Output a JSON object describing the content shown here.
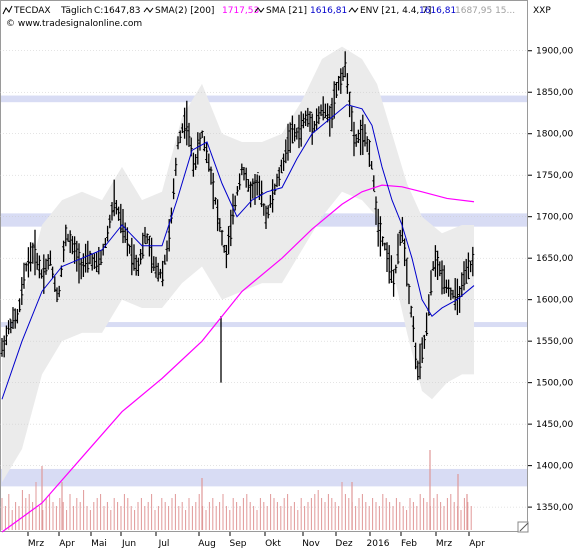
{
  "header": {
    "symbol": "TECDAX",
    "interval": "Täglich",
    "close": "C:1647,83",
    "ind1_name": "SMA(2) [200]",
    "ind1_val": "1717,53",
    "ind2_name": "SMA [21]",
    "ind2_val": "1616,81",
    "ind3_name": "ENV [21, 4.4, 7]",
    "ind3_val": "1616,81",
    "ind3_val2": "1687,95  15...",
    "scale_label": "XXP",
    "copyright": "© www.tradesignalonline.com"
  },
  "colors": {
    "price": "#000000",
    "sma200": "#ff00ff",
    "sma21": "#0000cc",
    "envelope": "#ebebeb",
    "zones": "#d8dcf4",
    "volume": "#e09898",
    "grid": "#c8c8c8"
  },
  "chart_data": {
    "type": "candlestick",
    "x_ticks": [
      "Mrz",
      "Apr",
      "Mai",
      "Jun",
      "Jul",
      "Aug",
      "Sep",
      "Okt",
      "Nov",
      "Dez",
      "2016",
      "Feb",
      "Mrz",
      "Apr"
    ],
    "y_ticks": [
      "1900,00",
      "1850,00",
      "1800,00",
      "1750,00",
      "1700,00",
      "1650,00",
      "1600,00",
      "1550,00",
      "1500,00",
      "1450,00",
      "1400,00",
      "1350,00"
    ],
    "ylim": [
      1320,
      1925
    ],
    "price_path": [
      [
        0,
        1540
      ],
      [
        8,
        1570
      ],
      [
        16,
        1580
      ],
      [
        24,
        1640
      ],
      [
        32,
        1660
      ],
      [
        40,
        1630
      ],
      [
        48,
        1650
      ],
      [
        56,
        1600
      ],
      [
        64,
        1680
      ],
      [
        72,
        1660
      ],
      [
        80,
        1640
      ],
      [
        88,
        1650
      ],
      [
        96,
        1640
      ],
      [
        104,
        1670
      ],
      [
        112,
        1720
      ],
      [
        120,
        1690
      ],
      [
        128,
        1660
      ],
      [
        136,
        1640
      ],
      [
        144,
        1680
      ],
      [
        152,
        1640
      ],
      [
        160,
        1630
      ],
      [
        168,
        1680
      ],
      [
        176,
        1790
      ],
      [
        184,
        1820
      ],
      [
        192,
        1760
      ],
      [
        200,
        1800
      ],
      [
        208,
        1760
      ],
      [
        216,
        1700
      ],
      [
        224,
        1650
      ],
      [
        232,
        1710
      ],
      [
        240,
        1760
      ],
      [
        248,
        1730
      ],
      [
        256,
        1740
      ],
      [
        264,
        1700
      ],
      [
        272,
        1730
      ],
      [
        280,
        1760
      ],
      [
        288,
        1800
      ],
      [
        296,
        1800
      ],
      [
        304,
        1820
      ],
      [
        312,
        1810
      ],
      [
        320,
        1830
      ],
      [
        328,
        1820
      ],
      [
        336,
        1860
      ],
      [
        344,
        1880
      ],
      [
        352,
        1790
      ],
      [
        360,
        1800
      ],
      [
        368,
        1780
      ],
      [
        376,
        1690
      ],
      [
        384,
        1660
      ],
      [
        392,
        1620
      ],
      [
        400,
        1690
      ],
      [
        408,
        1600
      ],
      [
        416,
        1510
      ],
      [
        424,
        1560
      ],
      [
        432,
        1650
      ],
      [
        440,
        1630
      ],
      [
        448,
        1610
      ],
      [
        456,
        1600
      ],
      [
        464,
        1630
      ],
      [
        472,
        1648
      ]
    ],
    "sma21_path": [
      [
        0,
        1480
      ],
      [
        20,
        1550
      ],
      [
        40,
        1610
      ],
      [
        60,
        1640
      ],
      [
        80,
        1650
      ],
      [
        100,
        1660
      ],
      [
        120,
        1690
      ],
      [
        140,
        1665
      ],
      [
        160,
        1665
      ],
      [
        175,
        1720
      ],
      [
        190,
        1780
      ],
      [
        205,
        1790
      ],
      [
        220,
        1740
      ],
      [
        235,
        1700
      ],
      [
        250,
        1720
      ],
      [
        265,
        1730
      ],
      [
        280,
        1735
      ],
      [
        295,
        1770
      ],
      [
        310,
        1800
      ],
      [
        325,
        1815
      ],
      [
        345,
        1835
      ],
      [
        360,
        1830
      ],
      [
        370,
        1810
      ],
      [
        380,
        1760
      ],
      [
        390,
        1720
      ],
      [
        400,
        1690
      ],
      [
        410,
        1650
      ],
      [
        420,
        1600
      ],
      [
        430,
        1580
      ],
      [
        440,
        1590
      ],
      [
        455,
        1600
      ],
      [
        472,
        1617
      ]
    ],
    "sma200_path": [
      [
        0,
        1320
      ],
      [
        40,
        1355
      ],
      [
        80,
        1410
      ],
      [
        120,
        1465
      ],
      [
        160,
        1505
      ],
      [
        200,
        1550
      ],
      [
        240,
        1610
      ],
      [
        280,
        1650
      ],
      [
        310,
        1685
      ],
      [
        340,
        1715
      ],
      [
        360,
        1730
      ],
      [
        380,
        1738
      ],
      [
        400,
        1736
      ],
      [
        420,
        1730
      ],
      [
        445,
        1722
      ],
      [
        472,
        1718
      ]
    ],
    "envelope_upper": [
      [
        0,
        1530
      ],
      [
        20,
        1600
      ],
      [
        40,
        1690
      ],
      [
        60,
        1720
      ],
      [
        80,
        1730
      ],
      [
        100,
        1720
      ],
      [
        120,
        1760
      ],
      [
        140,
        1720
      ],
      [
        160,
        1730
      ],
      [
        180,
        1820
      ],
      [
        200,
        1860
      ],
      [
        220,
        1800
      ],
      [
        240,
        1790
      ],
      [
        260,
        1790
      ],
      [
        280,
        1800
      ],
      [
        300,
        1840
      ],
      [
        320,
        1890
      ],
      [
        340,
        1905
      ],
      [
        360,
        1890
      ],
      [
        375,
        1860
      ],
      [
        390,
        1800
      ],
      [
        405,
        1740
      ],
      [
        420,
        1700
      ],
      [
        440,
        1680
      ],
      [
        460,
        1690
      ],
      [
        472,
        1690
      ]
    ],
    "envelope_lower": [
      [
        0,
        1380
      ],
      [
        20,
        1420
      ],
      [
        40,
        1510
      ],
      [
        60,
        1550
      ],
      [
        80,
        1560
      ],
      [
        100,
        1560
      ],
      [
        120,
        1600
      ],
      [
        140,
        1590
      ],
      [
        160,
        1590
      ],
      [
        180,
        1620
      ],
      [
        200,
        1640
      ],
      [
        220,
        1600
      ],
      [
        240,
        1610
      ],
      [
        260,
        1620
      ],
      [
        280,
        1620
      ],
      [
        300,
        1660
      ],
      [
        320,
        1700
      ],
      [
        340,
        1730
      ],
      [
        360,
        1720
      ],
      [
        375,
        1700
      ],
      [
        390,
        1640
      ],
      [
        405,
        1560
      ],
      [
        420,
        1490
      ],
      [
        430,
        1480
      ],
      [
        445,
        1500
      ],
      [
        460,
        1510
      ],
      [
        472,
        1510
      ]
    ],
    "zones": [
      [
        1838,
        1846
      ],
      [
        1688,
        1704
      ],
      [
        1567,
        1573
      ],
      [
        1375,
        1396
      ]
    ],
    "spikes": [
      [
        219,
        1500,
        1580
      ]
    ],
    "volume": [
      8,
      6,
      9,
      5,
      7,
      6,
      10,
      8,
      9,
      7,
      12,
      6,
      5,
      8,
      9,
      7,
      6,
      8,
      7,
      5,
      9,
      6,
      8,
      7,
      10,
      6,
      5,
      7,
      8,
      9,
      6,
      7,
      5,
      8,
      7,
      6,
      9,
      8,
      6,
      5,
      7,
      8,
      6,
      7,
      9,
      5,
      6,
      8,
      7,
      6,
      8,
      9,
      6,
      7,
      5,
      8,
      6,
      7,
      9,
      6,
      5,
      7,
      8,
      6,
      7,
      9,
      6,
      5,
      8,
      7,
      6,
      8,
      9,
      7,
      6,
      5,
      8,
      7,
      6,
      9,
      8,
      7,
      6,
      8,
      9,
      6,
      7,
      5,
      8,
      6,
      7,
      8,
      9,
      10,
      8,
      7,
      9,
      8,
      7,
      6,
      12,
      9,
      8,
      7,
      6,
      8,
      9,
      7,
      6,
      8,
      7,
      6,
      9,
      8,
      7,
      6,
      8,
      7,
      6,
      5,
      8,
      7,
      6,
      9,
      8,
      7,
      6,
      8,
      9,
      7,
      6,
      8,
      9,
      7,
      6,
      5,
      8,
      7,
      6,
      9
    ],
    "volume_highlights": [
      [
        40,
        16
      ],
      [
        60,
        12
      ],
      [
        200,
        13
      ],
      [
        350,
        12
      ],
      [
        428,
        20
      ],
      [
        456,
        14
      ],
      [
        465,
        9
      ]
    ]
  }
}
